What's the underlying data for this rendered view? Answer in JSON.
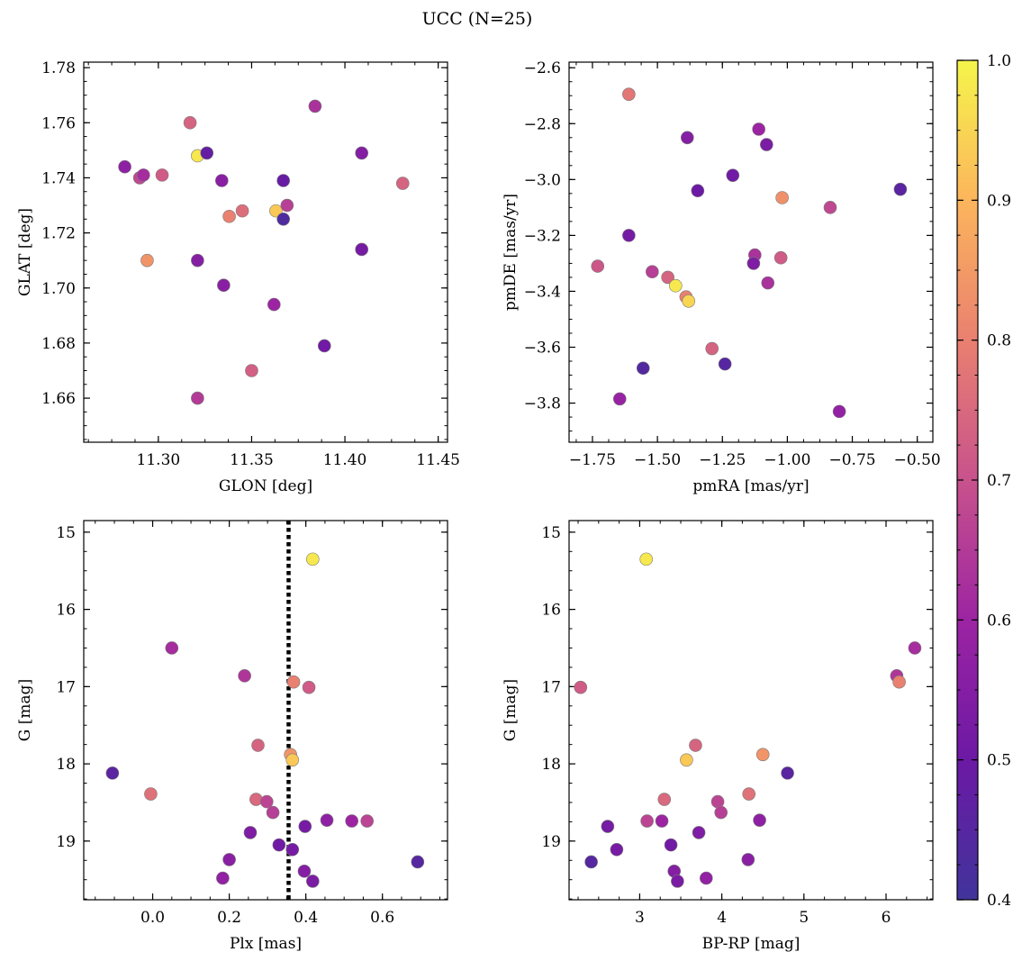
{
  "figure_title": "UCC (N=25)",
  "colorbar": {
    "range": [
      0.4,
      1.0
    ],
    "ticks": [
      0.4,
      0.5,
      0.6,
      0.7,
      0.8,
      0.9,
      1.0
    ],
    "tick_labels": [
      "0.4",
      "0.5",
      "0.6",
      "0.7",
      "0.8",
      "0.9",
      "1.0"
    ],
    "colormap": "plasma"
  },
  "chart_data": [
    {
      "type": "scatter",
      "xlabel": "GLON [deg]",
      "ylabel": "GLAT [deg]",
      "xlim": [
        11.26,
        11.455
      ],
      "ylim": [
        1.644,
        1.782
      ],
      "xticks": [
        11.3,
        11.35,
        11.4,
        11.45
      ],
      "xtick_labels": [
        "11.30",
        "11.35",
        "11.40",
        "11.45"
      ],
      "yticks": [
        1.66,
        1.68,
        1.7,
        1.72,
        1.74,
        1.76,
        1.78
      ],
      "ytick_labels": [
        "1.66",
        "1.68",
        "1.70",
        "1.72",
        "1.74",
        "1.76",
        "1.78"
      ],
      "points": [
        {
          "x": 11.282,
          "y": 1.744,
          "c": 0.57
        },
        {
          "x": 11.29,
          "y": 1.74,
          "c": 0.68
        },
        {
          "x": 11.292,
          "y": 1.741,
          "c": 0.62
        },
        {
          "x": 11.302,
          "y": 1.741,
          "c": 0.72
        },
        {
          "x": 11.317,
          "y": 1.76,
          "c": 0.74
        },
        {
          "x": 11.321,
          "y": 1.748,
          "c": 0.98
        },
        {
          "x": 11.326,
          "y": 1.749,
          "c": 0.48
        },
        {
          "x": 11.334,
          "y": 1.739,
          "c": 0.56
        },
        {
          "x": 11.338,
          "y": 1.726,
          "c": 0.8
        },
        {
          "x": 11.345,
          "y": 1.728,
          "c": 0.76
        },
        {
          "x": 11.363,
          "y": 1.728,
          "c": 0.93
        },
        {
          "x": 11.367,
          "y": 1.725,
          "c": 0.43
        },
        {
          "x": 11.367,
          "y": 1.739,
          "c": 0.49
        },
        {
          "x": 11.369,
          "y": 1.73,
          "c": 0.66
        },
        {
          "x": 11.384,
          "y": 1.766,
          "c": 0.63
        },
        {
          "x": 11.409,
          "y": 1.749,
          "c": 0.55
        },
        {
          "x": 11.409,
          "y": 1.714,
          "c": 0.52
        },
        {
          "x": 11.431,
          "y": 1.738,
          "c": 0.74
        },
        {
          "x": 11.294,
          "y": 1.71,
          "c": 0.84
        },
        {
          "x": 11.321,
          "y": 1.71,
          "c": 0.55
        },
        {
          "x": 11.335,
          "y": 1.701,
          "c": 0.56
        },
        {
          "x": 11.362,
          "y": 1.694,
          "c": 0.6
        },
        {
          "x": 11.389,
          "y": 1.679,
          "c": 0.51
        },
        {
          "x": 11.35,
          "y": 1.67,
          "c": 0.73
        },
        {
          "x": 11.321,
          "y": 1.66,
          "c": 0.65
        }
      ]
    },
    {
      "type": "scatter",
      "xlabel": "pmRA [mas/yr]",
      "ylabel": "pmDE [mas/yr]",
      "xlim": [
        -1.84,
        -0.44
      ],
      "ylim": [
        -3.94,
        -2.58
      ],
      "xticks": [
        -1.75,
        -1.5,
        -1.25,
        -1.0,
        -0.75,
        -0.5
      ],
      "xtick_labels": [
        "−1.75",
        "−1.50",
        "−1.25",
        "−1.00",
        "−0.75",
        "−0.50"
      ],
      "yticks": [
        -3.8,
        -3.6,
        -3.4,
        -3.2,
        -3.0,
        -2.8,
        -2.6
      ],
      "ytick_labels": [
        "−3.8",
        "−3.6",
        "−3.4",
        "−3.2",
        "−3.0",
        "−2.8",
        "−2.6"
      ],
      "points": [
        {
          "x": -1.61,
          "y": -2.695,
          "c": 0.78
        },
        {
          "x": -1.11,
          "y": -2.82,
          "c": 0.6
        },
        {
          "x": -1.385,
          "y": -2.85,
          "c": 0.55
        },
        {
          "x": -1.08,
          "y": -2.875,
          "c": 0.53
        },
        {
          "x": -1.21,
          "y": -2.985,
          "c": 0.51
        },
        {
          "x": -1.345,
          "y": -3.04,
          "c": 0.5
        },
        {
          "x": -0.565,
          "y": -3.035,
          "c": 0.46
        },
        {
          "x": -1.02,
          "y": -3.065,
          "c": 0.83
        },
        {
          "x": -0.835,
          "y": -3.1,
          "c": 0.68
        },
        {
          "x": -1.61,
          "y": -3.2,
          "c": 0.52
        },
        {
          "x": -1.125,
          "y": -3.27,
          "c": 0.63
        },
        {
          "x": -1.025,
          "y": -3.28,
          "c": 0.72
        },
        {
          "x": -1.73,
          "y": -3.31,
          "c": 0.71
        },
        {
          "x": -1.13,
          "y": -3.3,
          "c": 0.54
        },
        {
          "x": -1.52,
          "y": -3.33,
          "c": 0.66
        },
        {
          "x": -1.46,
          "y": -3.35,
          "c": 0.74
        },
        {
          "x": -1.075,
          "y": -3.37,
          "c": 0.63
        },
        {
          "x": -1.43,
          "y": -3.38,
          "c": 0.98
        },
        {
          "x": -1.39,
          "y": -3.42,
          "c": 0.8
        },
        {
          "x": -1.38,
          "y": -3.435,
          "c": 0.95
        },
        {
          "x": -1.29,
          "y": -3.605,
          "c": 0.74
        },
        {
          "x": -1.24,
          "y": -3.66,
          "c": 0.45
        },
        {
          "x": -1.555,
          "y": -3.675,
          "c": 0.44
        },
        {
          "x": -1.645,
          "y": -3.785,
          "c": 0.59
        },
        {
          "x": -0.8,
          "y": -3.83,
          "c": 0.58
        }
      ]
    },
    {
      "type": "scatter",
      "xlabel": "Plx [mas]",
      "ylabel": "G [mag]",
      "xlim": [
        -0.18,
        0.77
      ],
      "ylim": [
        19.76,
        14.85
      ],
      "y_inverted": true,
      "vline": {
        "x": 0.355,
        "style": "dotted"
      },
      "xticks": [
        0.0,
        0.2,
        0.4,
        0.6
      ],
      "xtick_labels": [
        "0.0",
        "0.2",
        "0.4",
        "0.6"
      ],
      "yticks": [
        15,
        16,
        17,
        18,
        19
      ],
      "ytick_labels": [
        "15",
        "16",
        "17",
        "18",
        "19"
      ],
      "points": [
        {
          "x": 0.418,
          "y": 15.35,
          "c": 0.98
        },
        {
          "x": 0.05,
          "y": 16.5,
          "c": 0.62
        },
        {
          "x": 0.24,
          "y": 16.86,
          "c": 0.64
        },
        {
          "x": 0.368,
          "y": 16.94,
          "c": 0.8
        },
        {
          "x": 0.408,
          "y": 17.01,
          "c": 0.72
        },
        {
          "x": 0.275,
          "y": 17.76,
          "c": 0.74
        },
        {
          "x": 0.36,
          "y": 17.88,
          "c": 0.84
        },
        {
          "x": 0.365,
          "y": 17.95,
          "c": 0.93
        },
        {
          "x": -0.105,
          "y": 18.12,
          "c": 0.46
        },
        {
          "x": -0.005,
          "y": 18.39,
          "c": 0.77
        },
        {
          "x": 0.27,
          "y": 18.46,
          "c": 0.75
        },
        {
          "x": 0.298,
          "y": 18.49,
          "c": 0.67
        },
        {
          "x": 0.314,
          "y": 18.63,
          "c": 0.66
        },
        {
          "x": 0.455,
          "y": 18.73,
          "c": 0.57
        },
        {
          "x": 0.52,
          "y": 18.74,
          "c": 0.6
        },
        {
          "x": 0.56,
          "y": 18.74,
          "c": 0.67
        },
        {
          "x": 0.398,
          "y": 18.81,
          "c": 0.52
        },
        {
          "x": 0.255,
          "y": 18.89,
          "c": 0.54
        },
        {
          "x": 0.33,
          "y": 19.05,
          "c": 0.51
        },
        {
          "x": 0.365,
          "y": 19.11,
          "c": 0.52
        },
        {
          "x": 0.2,
          "y": 19.24,
          "c": 0.56
        },
        {
          "x": 0.692,
          "y": 19.27,
          "c": 0.45
        },
        {
          "x": 0.396,
          "y": 19.39,
          "c": 0.55
        },
        {
          "x": 0.183,
          "y": 19.48,
          "c": 0.58
        },
        {
          "x": 0.418,
          "y": 19.52,
          "c": 0.53
        }
      ]
    },
    {
      "type": "scatter",
      "xlabel": "BP-RP [mag]",
      "ylabel": "G [mag]",
      "xlim": [
        2.14,
        6.57
      ],
      "ylim": [
        19.76,
        14.85
      ],
      "y_inverted": true,
      "xticks": [
        3,
        4,
        5,
        6
      ],
      "xtick_labels": [
        "3",
        "4",
        "5",
        "6"
      ],
      "yticks": [
        15,
        16,
        17,
        18,
        19
      ],
      "ytick_labels": [
        "15",
        "16",
        "17",
        "18",
        "19"
      ],
      "points": [
        {
          "x": 3.08,
          "y": 15.35,
          "c": 0.98
        },
        {
          "x": 6.35,
          "y": 16.5,
          "c": 0.62
        },
        {
          "x": 6.13,
          "y": 16.86,
          "c": 0.64
        },
        {
          "x": 6.16,
          "y": 16.94,
          "c": 0.8
        },
        {
          "x": 2.28,
          "y": 17.01,
          "c": 0.72
        },
        {
          "x": 3.68,
          "y": 17.76,
          "c": 0.74
        },
        {
          "x": 4.5,
          "y": 17.88,
          "c": 0.84
        },
        {
          "x": 3.57,
          "y": 17.95,
          "c": 0.93
        },
        {
          "x": 4.8,
          "y": 18.12,
          "c": 0.46
        },
        {
          "x": 4.33,
          "y": 18.39,
          "c": 0.77
        },
        {
          "x": 3.3,
          "y": 18.46,
          "c": 0.75
        },
        {
          "x": 3.95,
          "y": 18.49,
          "c": 0.67
        },
        {
          "x": 3.99,
          "y": 18.63,
          "c": 0.66
        },
        {
          "x": 4.46,
          "y": 18.73,
          "c": 0.57
        },
        {
          "x": 3.27,
          "y": 18.74,
          "c": 0.6
        },
        {
          "x": 3.09,
          "y": 18.74,
          "c": 0.67
        },
        {
          "x": 2.61,
          "y": 18.81,
          "c": 0.52
        },
        {
          "x": 3.72,
          "y": 18.89,
          "c": 0.54
        },
        {
          "x": 3.38,
          "y": 19.05,
          "c": 0.51
        },
        {
          "x": 2.72,
          "y": 19.11,
          "c": 0.52
        },
        {
          "x": 4.32,
          "y": 19.24,
          "c": 0.56
        },
        {
          "x": 2.41,
          "y": 19.27,
          "c": 0.45
        },
        {
          "x": 3.42,
          "y": 19.39,
          "c": 0.55
        },
        {
          "x": 3.81,
          "y": 19.48,
          "c": 0.58
        },
        {
          "x": 3.46,
          "y": 19.52,
          "c": 0.53
        }
      ]
    }
  ]
}
